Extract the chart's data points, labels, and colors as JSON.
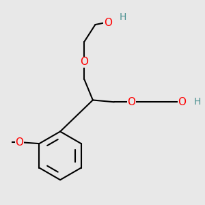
{
  "bg_color": "#e8e8e8",
  "atom_colors": {
    "C": "#000000",
    "O": "#ff0000",
    "H": "#4a9090"
  },
  "bond_color": "#000000",
  "bond_width": 1.5,
  "font_size_atom": 11,
  "font_size_H": 10
}
